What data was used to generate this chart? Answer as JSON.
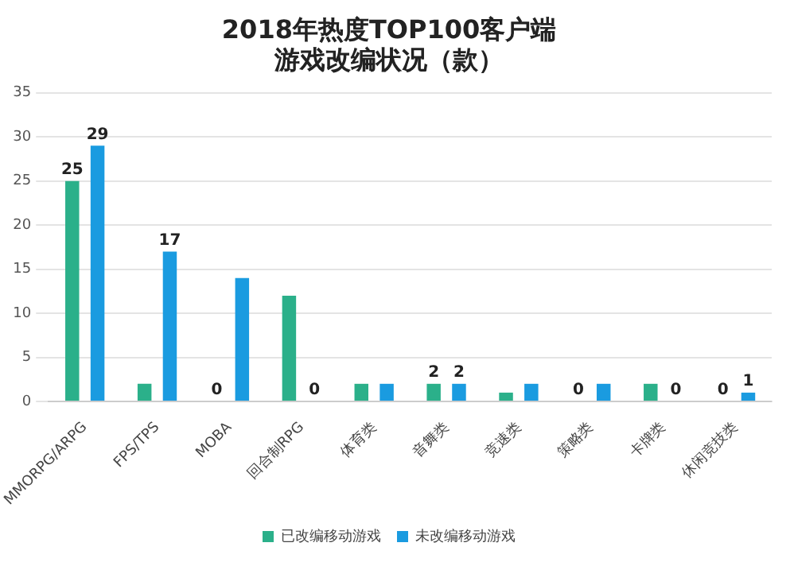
{
  "chart_data": {
    "type": "bar",
    "title": [
      "2018年热度TOP100客户端",
      "游戏改编状况（款）"
    ],
    "categories": [
      "MMORPG/ARPG",
      "FPS/TPS",
      "MOBA",
      "回合制RPG",
      "体育类",
      "音舞类",
      "竞速类",
      "策略类",
      "卡牌类",
      "休闲竞技类"
    ],
    "series": [
      {
        "name": "已改编移动游戏",
        "color": "#2bb08a",
        "values": [
          25,
          2,
          0,
          12,
          2,
          2,
          1,
          0,
          2,
          0
        ],
        "value_labels": [
          "25",
          null,
          "0",
          null,
          null,
          "2",
          null,
          "0",
          null,
          "0"
        ]
      },
      {
        "name": "未改编移动游戏",
        "color": "#1a9be0",
        "values": [
          29,
          17,
          14,
          0,
          2,
          2,
          2,
          2,
          0,
          1
        ],
        "value_labels": [
          "29",
          "17",
          null,
          "0",
          null,
          "2",
          null,
          null,
          "0",
          "1"
        ]
      }
    ],
    "ylim": [
      0,
      35
    ],
    "yticks": [
      0,
      5,
      10,
      15,
      20,
      25,
      30,
      35
    ],
    "grid": "y",
    "legend": "bottom"
  }
}
